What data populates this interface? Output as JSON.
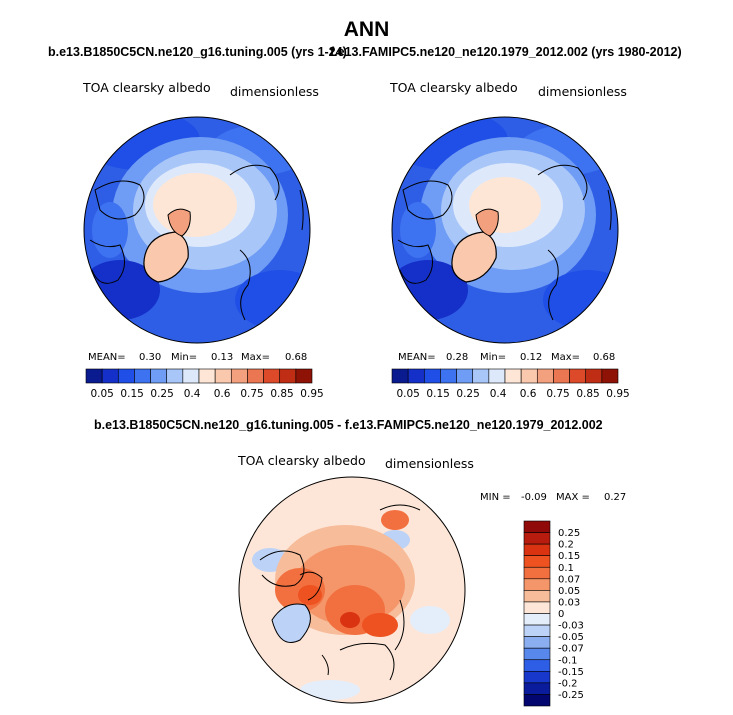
{
  "title": "ANN",
  "panels": [
    {
      "case": "b.e13.B1850C5CN.ne120_g16.tuning.005 (yrs 1-24)",
      "variable": "TOA clearsky albedo",
      "units": "dimensionless",
      "stats": {
        "mean_label": "MEAN=",
        "mean": "0.30",
        "min_label": "Min=",
        "min": "0.13",
        "max_label": "Max=",
        "max": "0.68"
      }
    },
    {
      "case": "f.e13.FAMIPC5.ne120_ne120.1979_2012.002 (yrs 1980-2012)",
      "variable": "TOA clearsky albedo",
      "units": "dimensionless",
      "stats": {
        "mean_label": "MEAN=",
        "mean": "0.28",
        "min_label": "Min=",
        "min": "0.12",
        "max_label": "Max=",
        "max": "0.68"
      }
    }
  ],
  "diff_panel": {
    "title": "b.e13.B1850C5CN.ne120_g16.tuning.005 - f.e13.FAMIPC5.ne120_ne120.1979_2012.002",
    "variable": "TOA clearsky albedo",
    "units": "dimensionless",
    "min_label": "MIN =",
    "min": "-0.09",
    "max_label": "MAX =",
    "max": "0.27"
  },
  "chart_data": [
    {
      "type": "heatmap",
      "title": "b.e13.B1850C5CN.ne120_g16.tuning.005 (yrs 1-24)",
      "colorbar_levels": [
        "0.05",
        "0.15",
        "0.25",
        "0.4",
        "0.6",
        "0.75",
        "0.85",
        "0.95"
      ],
      "colorbar_colors": [
        "#0a1a8f",
        "#1530c8",
        "#1f4fe6",
        "#3d72f0",
        "#6f9cf4",
        "#a9c6f8",
        "#dde9fb",
        "#fde6d6",
        "#f9c8ad",
        "#f3a07e",
        "#ea7652",
        "#dc4a2a",
        "#c02d15",
        "#8f1206"
      ],
      "mean": 0.3,
      "min": 0.13,
      "max": 0.68
    },
    {
      "type": "heatmap",
      "title": "f.e13.FAMIPC5.ne120_ne120.1979_2012.002 (yrs 1980-2012)",
      "colorbar_levels": [
        "0.05",
        "0.15",
        "0.25",
        "0.4",
        "0.6",
        "0.75",
        "0.85",
        "0.95"
      ],
      "colorbar_colors": [
        "#0a1a8f",
        "#1530c8",
        "#1f4fe6",
        "#3d72f0",
        "#6f9cf4",
        "#a9c6f8",
        "#dde9fb",
        "#fde6d6",
        "#f9c8ad",
        "#f3a07e",
        "#ea7652",
        "#dc4a2a",
        "#c02d15",
        "#8f1206"
      ],
      "mean": 0.28,
      "min": 0.12,
      "max": 0.68
    },
    {
      "type": "heatmap",
      "title": "b.e13.B1850C5CN.ne120_g16.tuning.005 - f.e13.FAMIPC5.ne120_ne120.1979_2012.002",
      "colorbar_levels": [
        "0.25",
        "0.2",
        "0.15",
        "0.1",
        "0.07",
        "0.05",
        "0.03",
        "0",
        "-0.03",
        "-0.05",
        "-0.07",
        "-0.1",
        "-0.15",
        "-0.2",
        "-0.25"
      ],
      "colorbar_colors": [
        "#8f0a08",
        "#b81c0e",
        "#d93312",
        "#ee5220",
        "#f2703f",
        "#f49669",
        "#f7bc9a",
        "#fde6d8",
        "#e4eefb",
        "#bcd2f6",
        "#8aaef0",
        "#5888ec",
        "#2f5ee6",
        "#1838cc",
        "#0a1c9c",
        "#02066e"
      ],
      "min": -0.09,
      "max": 0.27
    }
  ]
}
